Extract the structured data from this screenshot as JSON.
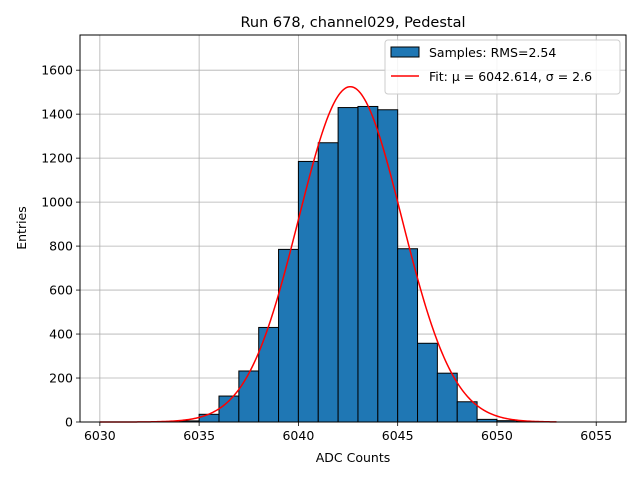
{
  "chart_data": {
    "type": "bar",
    "title": "Run 678, channel029, Pedestal",
    "xlabel": "ADC Counts",
    "ylabel": "Entries",
    "xlim": [
      6029,
      6056.5
    ],
    "ylim": [
      0,
      1760
    ],
    "xticks": [
      "6030",
      "6035",
      "6040",
      "6045",
      "6050",
      "6055"
    ],
    "yticks": [
      "0",
      "200",
      "400",
      "600",
      "800",
      "1000",
      "1200",
      "1400",
      "1600"
    ],
    "grid": true,
    "legend_position": "top-right",
    "histogram": {
      "name": "Samples: RMS=2.54",
      "color": "#1f77b4",
      "edge_color": "#000000",
      "bins": [
        {
          "left": 6033,
          "right": 6034,
          "count": 1
        },
        {
          "left": 6034,
          "right": 6035,
          "count": 5
        },
        {
          "left": 6035,
          "right": 6036,
          "count": 35
        },
        {
          "left": 6036,
          "right": 6037,
          "count": 118
        },
        {
          "left": 6037,
          "right": 6038,
          "count": 232
        },
        {
          "left": 6038,
          "right": 6039,
          "count": 430
        },
        {
          "left": 6039,
          "right": 6040,
          "count": 785
        },
        {
          "left": 6040,
          "right": 6041,
          "count": 1185
        },
        {
          "left": 6041,
          "right": 6042,
          "count": 1270
        },
        {
          "left": 6042,
          "right": 6043,
          "count": 1430
        },
        {
          "left": 6043,
          "right": 6044,
          "count": 1435
        },
        {
          "left": 6044,
          "right": 6045,
          "count": 1420
        },
        {
          "left": 6045,
          "right": 6046,
          "count": 788
        },
        {
          "left": 6046,
          "right": 6047,
          "count": 358
        },
        {
          "left": 6047,
          "right": 6048,
          "count": 222
        },
        {
          "left": 6048,
          "right": 6049,
          "count": 92
        },
        {
          "left": 6049,
          "right": 6050,
          "count": 12
        },
        {
          "left": 6050,
          "right": 6051,
          "count": 6
        },
        {
          "left": 6051,
          "right": 6052,
          "count": 2
        }
      ]
    },
    "fit": {
      "name": "Fit: μ = 6042.614, σ = 2.6",
      "color": "#ff0000",
      "mu": 6042.614,
      "sigma": 2.6,
      "peak": 1525,
      "x_range": [
        6030,
        6053
      ]
    }
  }
}
